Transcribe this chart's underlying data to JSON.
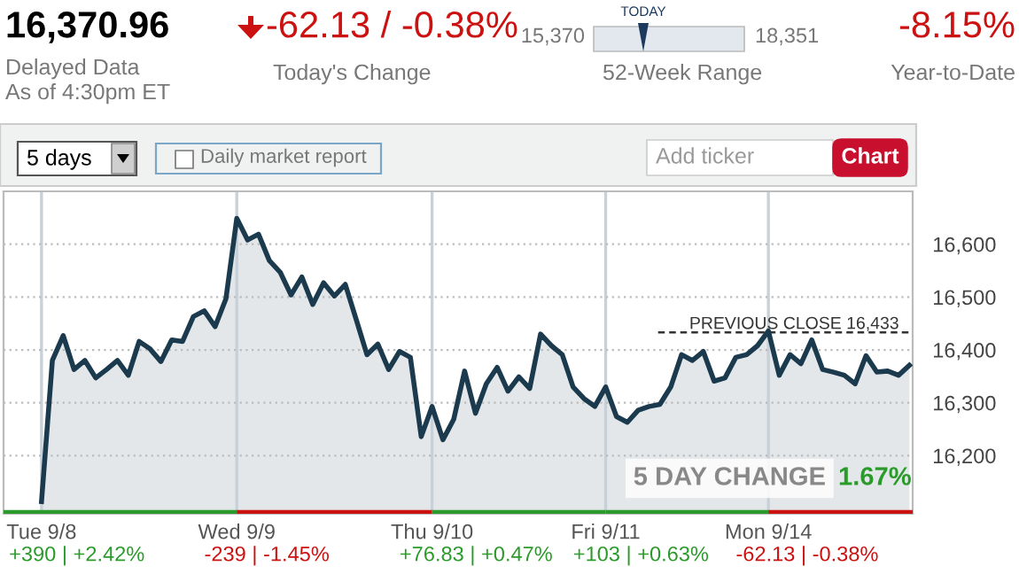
{
  "chart_data": {
    "type": "area",
    "color": "#1b3a4e",
    "categories": [
      "Tue 9/8",
      null,
      null,
      null,
      null,
      null,
      null,
      null,
      null,
      null,
      null,
      null,
      null,
      null,
      null,
      null,
      null,
      null,
      "Wed 9/9",
      null,
      null,
      null,
      null,
      null,
      null,
      null,
      null,
      null,
      null,
      null,
      null,
      null,
      null,
      null,
      null,
      null,
      "Thu 9/10",
      null,
      null,
      null,
      null,
      null,
      null,
      null,
      null,
      null,
      null,
      null,
      null,
      null,
      null,
      null,
      "Fri 9/11",
      null,
      null,
      null,
      null,
      null,
      null,
      null,
      null,
      null,
      null,
      null,
      null,
      null,
      null,
      "Mon 9/14",
      null,
      null,
      null,
      null,
      null,
      null,
      null,
      null,
      null,
      null,
      null,
      null,
      null
    ],
    "values": [
      16113,
      16380,
      16427,
      16363,
      16380,
      16347,
      16363,
      16380,
      16352,
      16416,
      16402,
      16378,
      16419,
      16416,
      16463,
      16474,
      16444,
      16497,
      16649,
      16608,
      16619,
      16569,
      16547,
      16504,
      16538,
      16486,
      16527,
      16502,
      16524,
      16458,
      16391,
      16411,
      16363,
      16397,
      16386,
      16236,
      16293,
      16230,
      16269,
      16360,
      16280,
      16336,
      16367,
      16322,
      16349,
      16327,
      16430,
      16408,
      16391,
      16330,
      16308,
      16293,
      16330,
      16274,
      16263,
      16286,
      16293,
      16297,
      16330,
      16391,
      16380,
      16397,
      16341,
      16347,
      16386,
      16391,
      16408,
      16436,
      16352,
      16391,
      16374,
      16419,
      16363,
      16358,
      16352,
      16336,
      16389,
      16358,
      16360,
      16352,
      16371
    ],
    "ylim": [
      16090,
      16700
    ],
    "yticks": [
      {
        "value": 16200,
        "label": "16,200"
      },
      {
        "value": 16300,
        "label": "16,300"
      },
      {
        "value": 16400,
        "label": "16,400"
      },
      {
        "value": 16500,
        "label": "16,500"
      },
      {
        "value": 16600,
        "label": "16,600"
      }
    ],
    "grid": true,
    "legend": false,
    "ref_lines": [
      {
        "axis": "y",
        "value": 16433,
        "label": "PREVIOUS CLOSE 16,433",
        "line_style": "dashed",
        "color": "#333333"
      }
    ],
    "annotations": [
      "16,370.96",
      "Delayed Data",
      "As of 4:30pm ET",
      "-62.13 / -0.38%",
      "Today's Change",
      "15,370",
      "TODAY",
      "18,351",
      "52-Week Range",
      "-8.15%",
      "Year-to-Date",
      "5 days",
      "Daily market report",
      "Add ticker",
      "Chart",
      "5 DAY CHANGE",
      "1.67%",
      "+390 | +2.42%",
      "-239 | -1.45%",
      "+76.83 | +0.47%",
      "+103 | +0.63%",
      "-62.13 | -0.38%"
    ]
  }
}
